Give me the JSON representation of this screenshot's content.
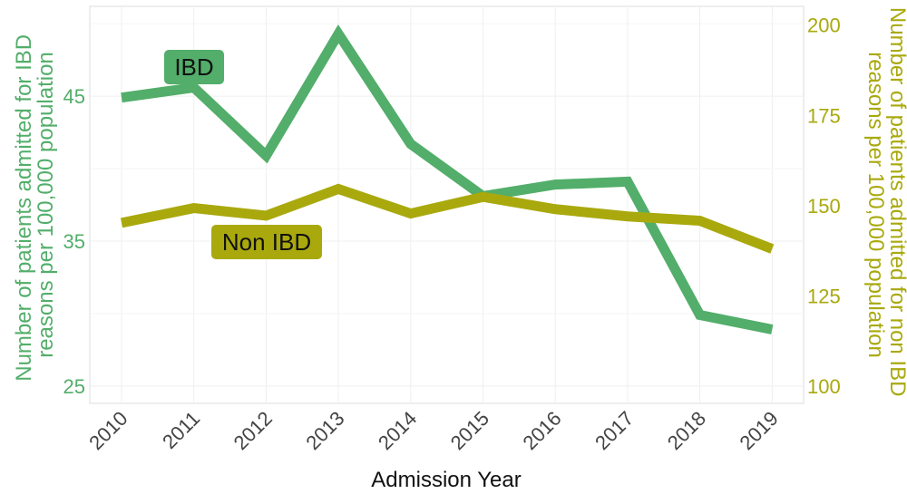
{
  "chart_data": {
    "type": "line",
    "x": [
      "2010",
      "2011",
      "2012",
      "2013",
      "2014",
      "2015",
      "2016",
      "2017",
      "2018",
      "2019"
    ],
    "xlabel": "Admission Year",
    "ylabel_left": [
      "Number of patients admitted for IBD",
      "reasons per 100,000 population"
    ],
    "ylabel_right": [
      "Number of patients admitted for non IBD",
      "reasons per 100,000 population"
    ],
    "ylim_left": [
      23.8,
      51.2
    ],
    "yticks_left": [
      25,
      35,
      45
    ],
    "ylim_right": [
      95.2,
      205.2
    ],
    "yticks_right": [
      100,
      125,
      150,
      175,
      200
    ],
    "grid": true,
    "series": [
      {
        "name": "IBD",
        "label": "IBD",
        "axis": "left",
        "color": "#52AE6A",
        "values": [
          44.9,
          45.6,
          40.9,
          49.3,
          41.7,
          38.1,
          38.9,
          39.1,
          29.9,
          28.9
        ]
      },
      {
        "name": "Non IBD",
        "label": "Non IBD",
        "axis": "right",
        "color": "#A9A90E",
        "values": [
          145.2,
          149.3,
          147.2,
          154.6,
          147.8,
          152.4,
          149.0,
          147.0,
          145.8,
          138.0
        ]
      }
    ]
  }
}
